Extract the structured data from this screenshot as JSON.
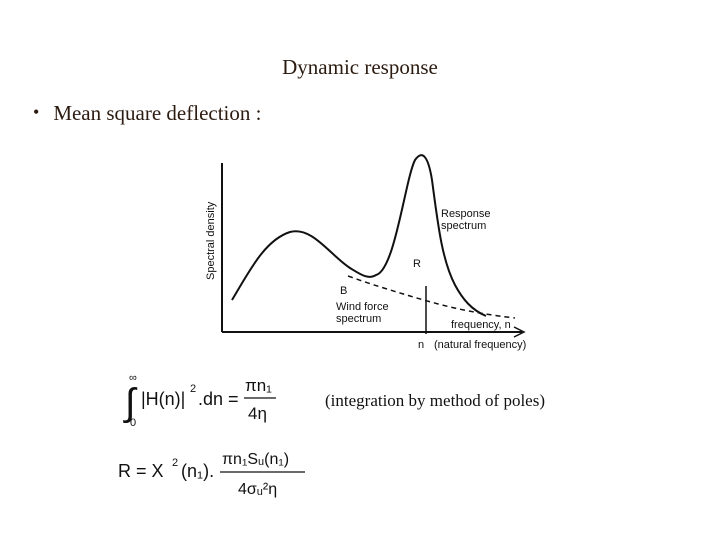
{
  "slide": {
    "title": "Dynamic response",
    "bullet": "Mean square deflection :",
    "note": "(integration by method of poles)"
  },
  "figure": {
    "y_axis_label": "Spectral density",
    "response_label_1": "Response",
    "response_label_2": "spectrum",
    "R_label": "R",
    "B_label": "B",
    "wind_label_1": "Wind force",
    "wind_label_2": "spectrum",
    "x_axis_label": "frequency, n",
    "natural_freq_symbol": "n",
    "natural_freq_label": "(natural frequency)"
  },
  "equation1": {
    "upper_limit": "∞",
    "lower_limit": "0",
    "integrand": "|H(n)|",
    "power": "2",
    "dn": ".dn =",
    "numerator": "πn₁",
    "denominator": "4η"
  },
  "equation2": {
    "lhs": "R = X",
    "power": "2",
    "arg": "(n₁).",
    "numerator": "πn₁Sᵤ(n₁)",
    "denominator": "4σᵤ²η"
  },
  "colors": {
    "text": "#2b1b10",
    "figure": "#111111"
  }
}
